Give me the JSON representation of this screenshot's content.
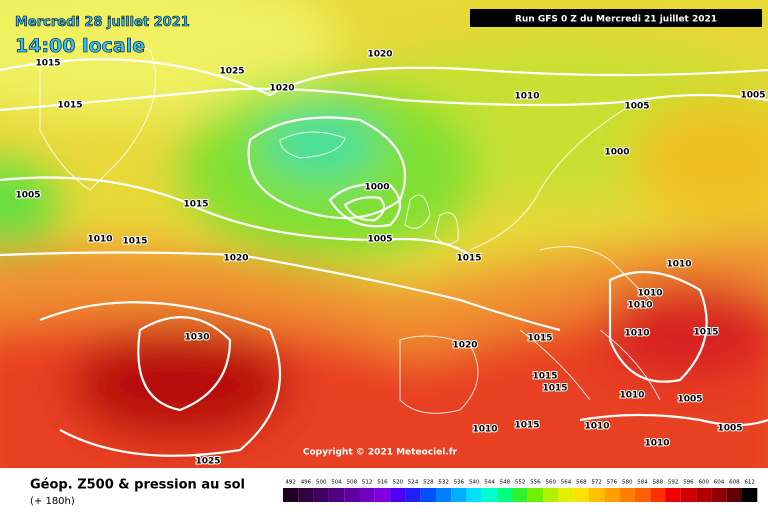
{
  "header": {
    "title": "Mercredi 28 juillet 2021",
    "time": "14:00 locale",
    "run": "Run GFS 0 Z du Mercredi 21 juillet 2021"
  },
  "copyright": "Copyright © 2021 Meteociel.fr",
  "footer": {
    "title": "Géop. Z500 & pression au sol",
    "lead": "(+ 180h)"
  },
  "isobar_labels": [
    1015,
    1020,
    1025,
    1020,
    1015,
    1010,
    1005,
    1005,
    1000,
    1005,
    1015,
    1000,
    1005,
    1010,
    1015,
    1020,
    1015,
    1010,
    1010,
    1010,
    1010,
    1015,
    1030,
    1020,
    1015,
    1015,
    1015,
    1010,
    1005,
    1015,
    1010,
    1010,
    1005,
    1010,
    1025
  ],
  "scale": {
    "labels": [
      492,
      496,
      500,
      504,
      508,
      512,
      516,
      520,
      524,
      528,
      532,
      536,
      540,
      544,
      548,
      552,
      556,
      560,
      564,
      568,
      572,
      576,
      580,
      584,
      588,
      592,
      596,
      600,
      604,
      608,
      612
    ],
    "colors": [
      "#200020",
      "#300040",
      "#400060",
      "#500080",
      "#6000a0",
      "#7000c0",
      "#8000e0",
      "#5000f0",
      "#2020ff",
      "#0050ff",
      "#0080ff",
      "#00b0ff",
      "#00e0ff",
      "#00ffd0",
      "#00ff80",
      "#30f030",
      "#70f000",
      "#b0f000",
      "#e0f000",
      "#ffe000",
      "#ffc000",
      "#ffa000",
      "#ff8000",
      "#ff6000",
      "#ff3000",
      "#f00000",
      "#d00000",
      "#b00000",
      "#900000",
      "#600000",
      "#000000"
    ]
  }
}
